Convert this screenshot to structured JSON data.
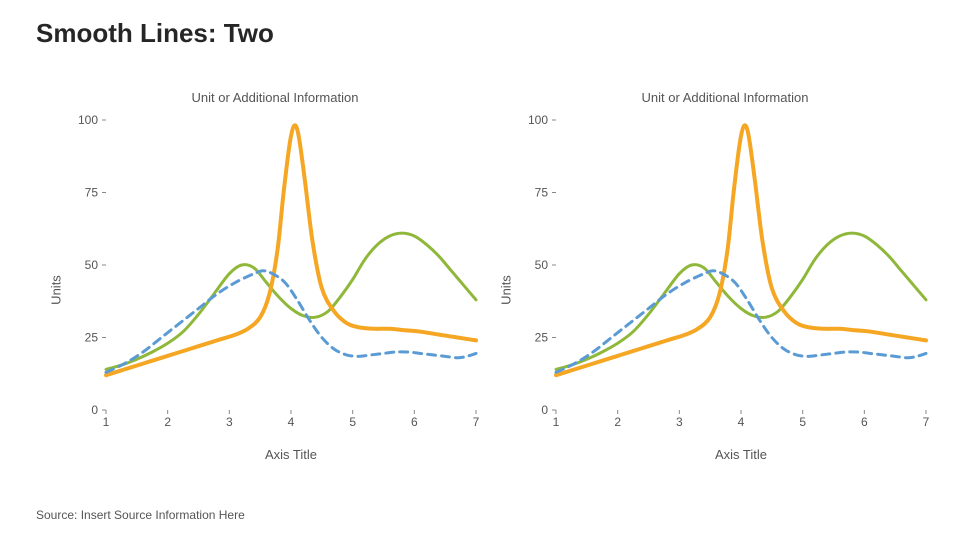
{
  "page": {
    "title": "Smooth Lines: Two",
    "source": "Source: Insert Source Information Here"
  },
  "chart_common": {
    "subtitle": "Unit or Additional Information",
    "y_label": "Units",
    "x_label": "Axis Title",
    "xlim": [
      1,
      7
    ],
    "ylim": [
      0,
      100
    ],
    "x_ticks": [
      1,
      2,
      3,
      4,
      5,
      6,
      7
    ],
    "y_ticks": [
      0,
      25,
      50,
      75,
      100
    ],
    "background_color": "#ffffff",
    "tick_color": "#888888",
    "text_color": "#555555"
  },
  "series": [
    {
      "name": "green",
      "color": "#8fb83b",
      "width": 3,
      "dash": "none",
      "points": [
        [
          1.0,
          14
        ],
        [
          1.25,
          15.5
        ],
        [
          1.5,
          17.5
        ],
        [
          1.75,
          20
        ],
        [
          2.0,
          23
        ],
        [
          2.25,
          27
        ],
        [
          2.5,
          33
        ],
        [
          2.75,
          40
        ],
        [
          3.0,
          47
        ],
        [
          3.2,
          50
        ],
        [
          3.4,
          49
        ],
        [
          3.6,
          44
        ],
        [
          3.8,
          39
        ],
        [
          4.0,
          35
        ],
        [
          4.2,
          32.5
        ],
        [
          4.4,
          32
        ],
        [
          4.6,
          34
        ],
        [
          4.8,
          39
        ],
        [
          5.0,
          45
        ],
        [
          5.2,
          52
        ],
        [
          5.4,
          57
        ],
        [
          5.6,
          60
        ],
        [
          5.8,
          61
        ],
        [
          6.0,
          60
        ],
        [
          6.2,
          57
        ],
        [
          6.4,
          53
        ],
        [
          6.6,
          48
        ],
        [
          6.8,
          43
        ],
        [
          7.0,
          38
        ]
      ]
    },
    {
      "name": "orange",
      "color": "#f5a623",
      "width": 4,
      "dash": "none",
      "points": [
        [
          1.0,
          12
        ],
        [
          1.3,
          14
        ],
        [
          1.6,
          16
        ],
        [
          1.9,
          18
        ],
        [
          2.2,
          20
        ],
        [
          2.5,
          22
        ],
        [
          2.8,
          24
        ],
        [
          3.1,
          26
        ],
        [
          3.3,
          28
        ],
        [
          3.5,
          32
        ],
        [
          3.65,
          40
        ],
        [
          3.78,
          55
        ],
        [
          3.88,
          75
        ],
        [
          3.98,
          92
        ],
        [
          4.05,
          98
        ],
        [
          4.12,
          95
        ],
        [
          4.22,
          80
        ],
        [
          4.35,
          58
        ],
        [
          4.5,
          42
        ],
        [
          4.7,
          34
        ],
        [
          4.9,
          30
        ],
        [
          5.1,
          28.5
        ],
        [
          5.35,
          28
        ],
        [
          5.6,
          28
        ],
        [
          5.85,
          27.5
        ],
        [
          6.1,
          27
        ],
        [
          6.4,
          26
        ],
        [
          6.7,
          25
        ],
        [
          7.0,
          24
        ]
      ]
    },
    {
      "name": "blue",
      "color": "#5b9bd5",
      "width": 3,
      "dash": "8 6",
      "points": [
        [
          1.0,
          13
        ],
        [
          1.3,
          16
        ],
        [
          1.6,
          20
        ],
        [
          1.9,
          25
        ],
        [
          2.2,
          30
        ],
        [
          2.5,
          35
        ],
        [
          2.8,
          40
        ],
        [
          3.1,
          44
        ],
        [
          3.4,
          47
        ],
        [
          3.55,
          48
        ],
        [
          3.7,
          47
        ],
        [
          3.9,
          44
        ],
        [
          4.1,
          38
        ],
        [
          4.3,
          31
        ],
        [
          4.5,
          25
        ],
        [
          4.7,
          21
        ],
        [
          4.9,
          19
        ],
        [
          5.1,
          18.5
        ],
        [
          5.3,
          19
        ],
        [
          5.5,
          19.5
        ],
        [
          5.7,
          20
        ],
        [
          5.9,
          20
        ],
        [
          6.1,
          19.5
        ],
        [
          6.3,
          19
        ],
        [
          6.5,
          18.5
        ],
        [
          6.7,
          18
        ],
        [
          6.85,
          18.5
        ],
        [
          7.0,
          19.5
        ]
      ]
    }
  ]
}
